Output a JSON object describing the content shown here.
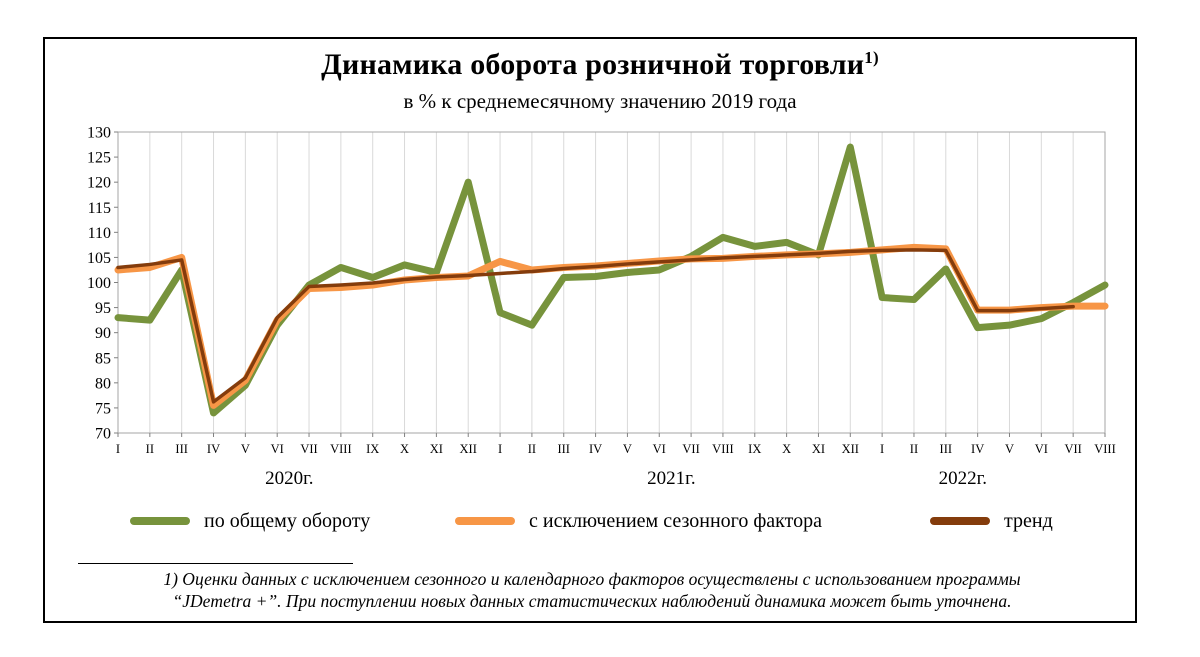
{
  "chart_data": {
    "type": "line",
    "title": "Динамика оборота розничной торговли",
    "title_footnote_mark": "1)",
    "subtitle": "в % к среднемесячному значению 2019 года",
    "ylim": [
      70,
      130
    ],
    "yticks": [
      "70",
      "75",
      "80",
      "85",
      "90",
      "95",
      "100",
      "105",
      "110",
      "115",
      "120",
      "125",
      "130"
    ],
    "grid": "vertical",
    "legend_position": "bottom",
    "x": [
      "I",
      "II",
      "III",
      "IV",
      "V",
      "VI",
      "VII",
      "VIII",
      "IX",
      "X",
      "XI",
      "XII",
      "I",
      "II",
      "III",
      "IV",
      "V",
      "VI",
      "VII",
      "VIII",
      "IX",
      "X",
      "XI",
      "XII",
      "I",
      "II",
      "III",
      "IV",
      "V",
      "VI",
      "VII",
      "VIII"
    ],
    "years": [
      {
        "label": "2020г.",
        "start_index": 0,
        "end_index": 11
      },
      {
        "label": "2021г.",
        "start_index": 12,
        "end_index": 23
      },
      {
        "label": "2022г.",
        "start_index": 24,
        "end_index": 31
      }
    ],
    "series": [
      {
        "name": "по общему обороту",
        "color": "#77933c",
        "values": [
          93,
          92.5,
          102.5,
          74,
          79.5,
          91.5,
          99.5,
          103,
          101,
          103.5,
          102,
          120,
          94,
          91.5,
          101,
          101.2,
          102,
          102.5,
          105.2,
          109,
          107.2,
          108,
          105.5,
          127,
          97,
          96.6,
          102.7,
          91,
          91.5,
          92.8,
          96,
          99.5
        ]
      },
      {
        "name": "с исключением сезонного фактора",
        "color": "#f79646",
        "values": [
          102.5,
          103,
          105,
          75.5,
          80.5,
          92.5,
          98.8,
          99,
          99.5,
          100.5,
          101,
          101.3,
          104.2,
          102.5,
          103,
          103.3,
          103.8,
          104.3,
          104.7,
          104.8,
          105.2,
          105.5,
          105.7,
          106,
          106.5,
          107,
          106.7,
          94.5,
          94.5,
          95,
          95.3,
          95.3
        ]
      },
      {
        "name": "тренд",
        "color": "#843c0c",
        "values": [
          103,
          103.6,
          104.5,
          76.2,
          81,
          93,
          99.2,
          99.5,
          99.9,
          100.6,
          101.1,
          101.4,
          101.8,
          102.2,
          102.8,
          103.2,
          103.7,
          104.1,
          104.5,
          104.9,
          105.2,
          105.5,
          105.8,
          106.2,
          106.4,
          106.5,
          106.4,
          94.4,
          94.4,
          94.8,
          95.2,
          null
        ]
      }
    ]
  },
  "footnote": {
    "line1": "1) Оценки данных с исключением сезонного и календарного факторов осуществлены с использованием  программы",
    "line2": "“JDemetra +”. При поступлении новых данных статистических наблюдений динамика может быть уточнена."
  }
}
